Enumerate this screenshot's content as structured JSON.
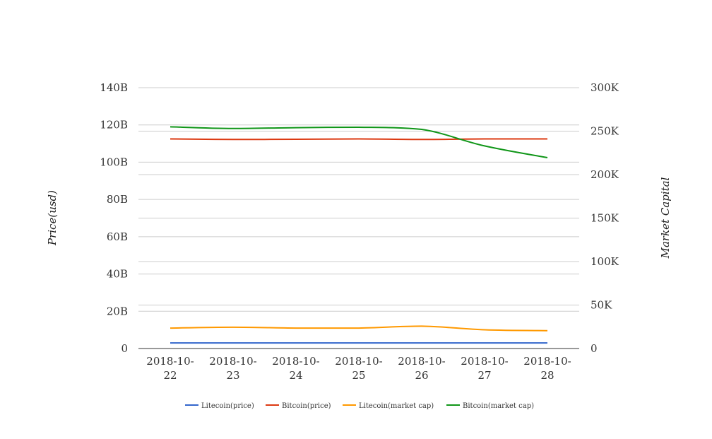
{
  "chart_data": {
    "type": "line",
    "categories": [
      "2018-10-22",
      "2018-10-23",
      "2018-10-24",
      "2018-10-25",
      "2018-10-26",
      "2018-10-27",
      "2018-10-28"
    ],
    "category_lines": [
      [
        "2018-10-",
        "22"
      ],
      [
        "2018-10-",
        "23"
      ],
      [
        "2018-10-",
        "24"
      ],
      [
        "2018-10-",
        "25"
      ],
      [
        "2018-10-",
        "26"
      ],
      [
        "2018-10-",
        "27"
      ],
      [
        "2018-10-",
        "28"
      ]
    ],
    "ylabel_left": "Price(usd)",
    "ylabel_right": "Market Capital",
    "left_axis": {
      "min": 0,
      "max": 140000000000,
      "ticks": [
        0,
        20000000000,
        40000000000,
        60000000000,
        80000000000,
        100000000000,
        120000000000,
        140000000000
      ],
      "tick_labels": [
        "0",
        "20B",
        "40B",
        "60B",
        "80B",
        "100B",
        "120B",
        "140B"
      ]
    },
    "right_axis": {
      "min": 0,
      "max": 300000,
      "ticks": [
        0,
        50000,
        100000,
        150000,
        200000,
        250000,
        300000
      ],
      "tick_labels": [
        "0",
        "50K",
        "100K",
        "150K",
        "200K",
        "250K",
        "300K"
      ]
    },
    "grid": true,
    "legend_position": "bottom",
    "series": [
      {
        "name": "Litecoin(price)",
        "axis": "left",
        "color": "#3366cc",
        "values": [
          3000000000,
          3000000000,
          3000000000,
          3000000000,
          3000000000,
          3000000000,
          3000000000
        ]
      },
      {
        "name": "Bitcoin(price)",
        "axis": "left",
        "color": "#dc3912",
        "values": [
          112500000000,
          112200000000,
          112300000000,
          112500000000,
          112200000000,
          112500000000,
          112500000000
        ]
      },
      {
        "name": "Litecoin(market cap)",
        "axis": "right",
        "color": "#ff9900",
        "values": [
          23500,
          24500,
          23500,
          23500,
          25700,
          21500,
          20500
        ]
      },
      {
        "name": "Bitcoin(market cap)",
        "axis": "right",
        "color": "#109618",
        "values": [
          255000,
          253000,
          254000,
          254500,
          252000,
          233000,
          219500
        ]
      }
    ]
  }
}
